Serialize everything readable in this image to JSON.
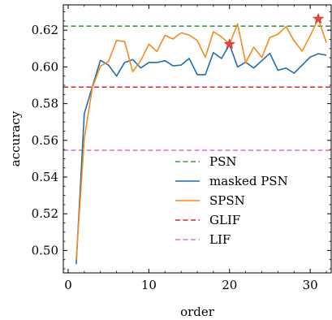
{
  "chart_data": {
    "type": "line",
    "title": "",
    "xlabel": "order",
    "ylabel": "accuracy",
    "xlim": [
      -0.6,
      32.6
    ],
    "ylim": [
      0.4878,
      0.6338
    ],
    "xticks": [
      0,
      10,
      20,
      30
    ],
    "yticks": [
      0.5,
      0.52,
      0.54,
      0.56,
      0.58,
      0.6,
      0.62
    ],
    "ytick_labels": [
      "0.50",
      "0.52",
      "0.54",
      "0.56",
      "0.58",
      "0.60",
      "0.62"
    ],
    "grid": false,
    "legend_position": "lower-right",
    "series": [
      {
        "name": "masked PSN",
        "color": "#1f6fa8",
        "style": "solid",
        "x": [
          1,
          2,
          3,
          4,
          5,
          6,
          7,
          8,
          9,
          10,
          11,
          12,
          13,
          14,
          15,
          16,
          17,
          18,
          19,
          20,
          21,
          22,
          23,
          24,
          25,
          26,
          27,
          28,
          29,
          30,
          31,
          32
        ],
        "y": [
          0.4926,
          0.5746,
          0.5892,
          0.6036,
          0.601,
          0.595,
          0.6024,
          0.604,
          0.5994,
          0.6024,
          0.6024,
          0.6034,
          0.6006,
          0.601,
          0.6046,
          0.5958,
          0.5958,
          0.6078,
          0.6046,
          0.6122,
          0.6,
          0.6026,
          0.5994,
          0.6034,
          0.6074,
          0.5982,
          0.5994,
          0.5966,
          0.601,
          0.6054,
          0.6072,
          0.6064
        ]
      },
      {
        "name": "SPSN",
        "color": "#f28c1c",
        "style": "solid",
        "x": [
          1,
          2,
          3,
          4,
          5,
          6,
          7,
          8,
          9,
          10,
          11,
          12,
          13,
          14,
          15,
          16,
          17,
          18,
          19,
          20,
          21,
          22,
          23,
          24,
          25,
          26,
          27,
          28,
          29,
          30,
          31,
          32
        ],
        "y": [
          0.495,
          0.5608,
          0.5888,
          0.6004,
          0.603,
          0.6144,
          0.6138,
          0.5974,
          0.6034,
          0.6124,
          0.6084,
          0.6172,
          0.6152,
          0.6186,
          0.6174,
          0.6144,
          0.6052,
          0.6192,
          0.6164,
          0.6124,
          0.6234,
          0.6022,
          0.6108,
          0.6052,
          0.616,
          0.6178,
          0.622,
          0.6142,
          0.6086,
          0.617,
          0.6262,
          0.6132
        ]
      },
      {
        "name": "PSN",
        "color": "#3a9d3a",
        "style": "dashed",
        "value": 0.6222
      },
      {
        "name": "GLIF",
        "color": "#d62728",
        "style": "dashed",
        "value": 0.589
      },
      {
        "name": "LIF",
        "color": "#e377c2",
        "style": "dashed",
        "value": 0.5546
      }
    ],
    "markers": [
      {
        "series": "SPSN",
        "x": 20,
        "y": 0.6124,
        "shape": "star",
        "color": "#e8453c"
      },
      {
        "series": "SPSN",
        "x": 31,
        "y": 0.6262,
        "shape": "star",
        "color": "#e8453c"
      }
    ],
    "legend_order": [
      "PSN",
      "masked PSN",
      "SPSN",
      "GLIF",
      "LIF"
    ]
  }
}
